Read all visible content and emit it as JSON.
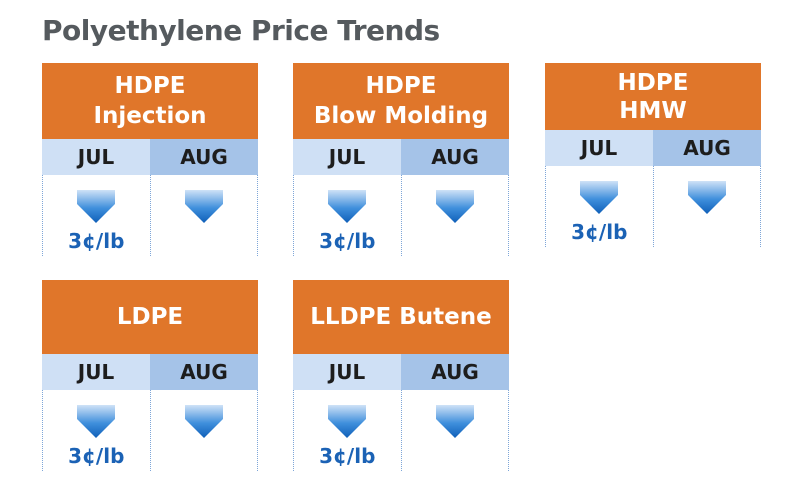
{
  "title": "Polyethylene Price Trends",
  "cards": [
    {
      "line1": "HDPE",
      "line2": "Injection",
      "jul": "JUL",
      "aug": "AUG",
      "jul_value": "3¢/lb",
      "aug_value": ""
    },
    {
      "line1": "HDPE",
      "line2": "Blow Molding",
      "jul": "JUL",
      "aug": "AUG",
      "jul_value": "3¢/lb",
      "aug_value": ""
    },
    {
      "line1": "HDPE",
      "line2": "HMW",
      "jul": "JUL",
      "aug": "AUG",
      "jul_value": "3¢/lb",
      "aug_value": ""
    },
    {
      "line1": "LDPE",
      "line2": "",
      "jul": "JUL",
      "aug": "AUG",
      "jul_value": "3¢/lb",
      "aug_value": ""
    },
    {
      "line1": "LLDPE Butene",
      "line2": "",
      "jul": "JUL",
      "aug": "AUG",
      "jul_value": "3¢/lb",
      "aug_value": ""
    }
  ],
  "colors": {
    "header": "#e0762a",
    "jul": "#cfe0f5",
    "aug": "#a5c3e8",
    "value": "#1b62b5"
  },
  "icons": {
    "trend": "down-arrow-icon"
  }
}
